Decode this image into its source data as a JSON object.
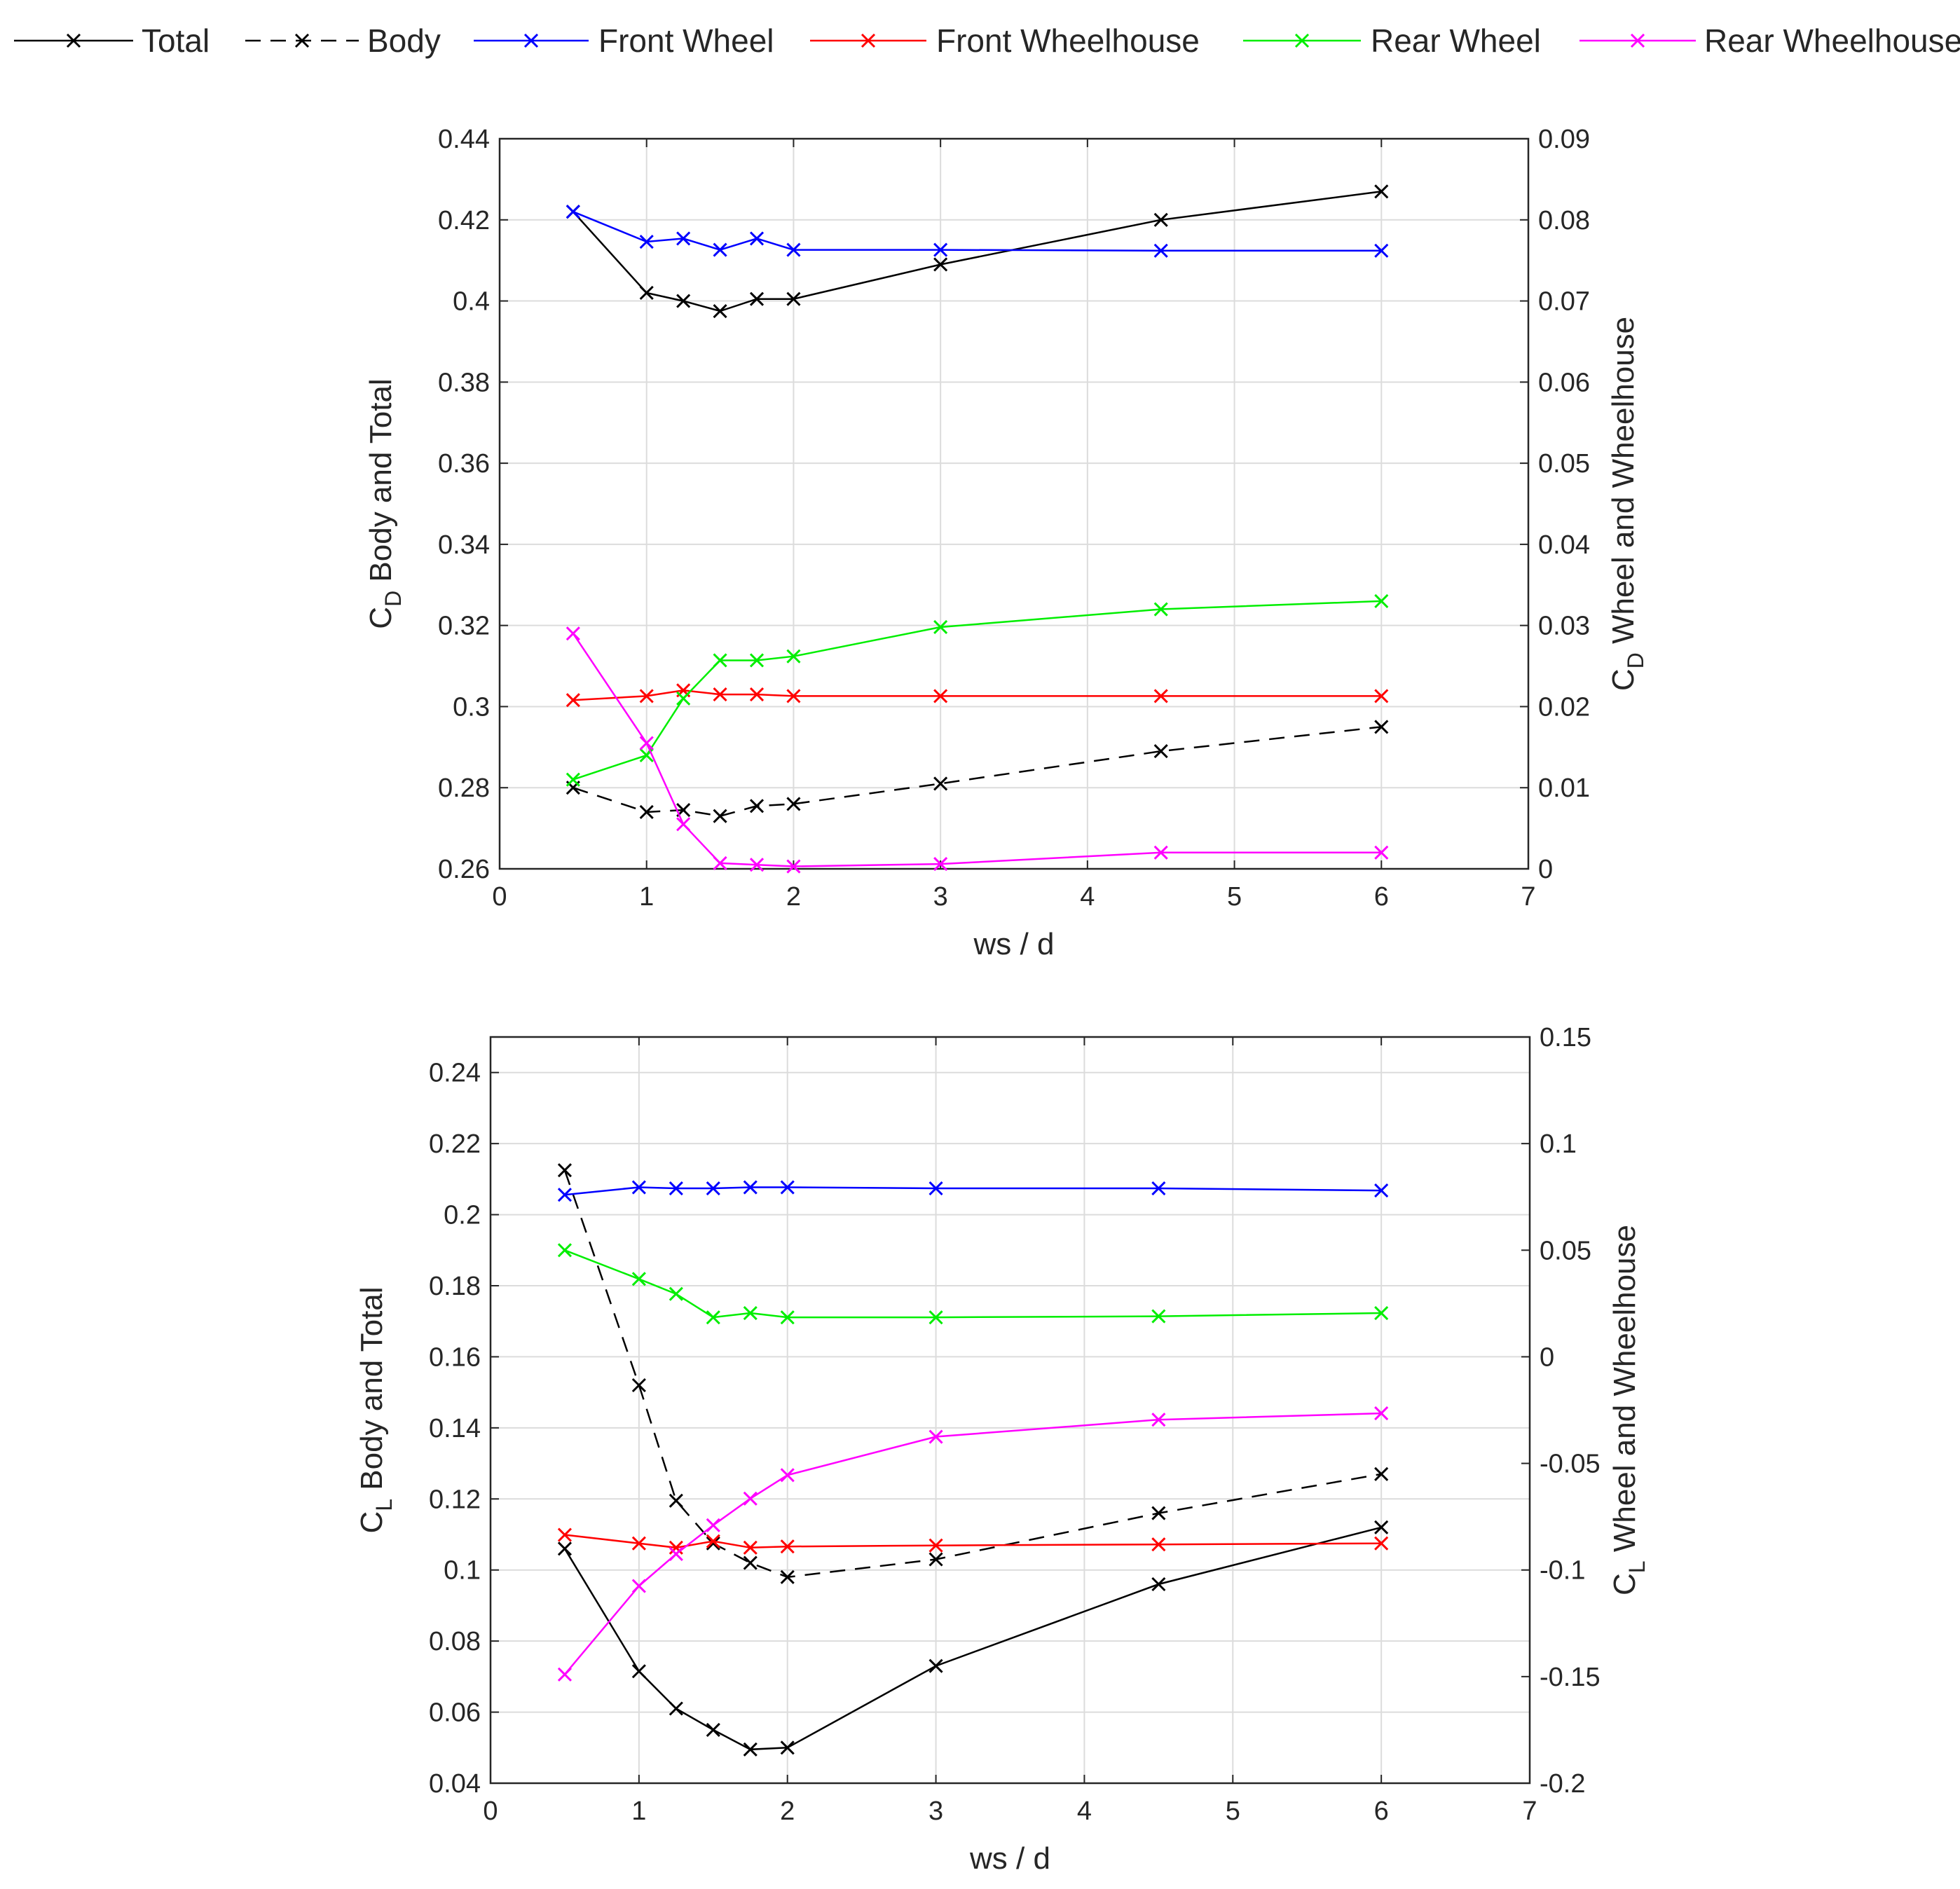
{
  "legend": [
    {
      "key": "total",
      "label": "Total",
      "color": "#000000",
      "dashed": false
    },
    {
      "key": "body",
      "label": "Body",
      "color": "#000000",
      "dashed": true
    },
    {
      "key": "front_wheel",
      "label": "Front Wheel",
      "color": "#0000ff",
      "dashed": false
    },
    {
      "key": "front_wheelhouse",
      "label": "Front Wheelhouse",
      "color": "#ff0000",
      "dashed": false
    },
    {
      "key": "rear_wheel",
      "label": "Rear Wheel",
      "color": "#00ee00",
      "dashed": false
    },
    {
      "key": "rear_wheelhouse",
      "label": "Rear Wheelhouse",
      "color": "#ff00ff",
      "dashed": false
    }
  ],
  "chart_data": [
    {
      "type": "line",
      "id": "drag",
      "xlabel": "ws / d",
      "ylabel_left": {
        "sym": "C",
        "sub": "D",
        "rest": " Body and Total"
      },
      "ylabel_right": {
        "sym": "C",
        "sub": "D",
        "rest": " Wheel and Wheelhouse"
      },
      "xlim": [
        0,
        7
      ],
      "xticks": [
        "0",
        "1",
        "2",
        "3",
        "4",
        "5",
        "6",
        "7"
      ],
      "ylim_left": [
        0.26,
        0.44
      ],
      "yticks_left": [
        "0.26",
        "0.28",
        "0.3",
        "0.32",
        "0.34",
        "0.36",
        "0.38",
        "0.4",
        "0.42",
        "0.44"
      ],
      "ylim_right": [
        0,
        0.09
      ],
      "yticks_right": [
        "0",
        "0.01",
        "0.02",
        "0.03",
        "0.04",
        "0.05",
        "0.06",
        "0.07",
        "0.08",
        "0.09"
      ],
      "grid": true,
      "x": [
        0.5,
        1,
        1.25,
        1.5,
        1.75,
        2,
        3,
        4.5,
        6
      ],
      "series": [
        {
          "name": "Total",
          "key": "total",
          "axis": "left",
          "values": [
            0.422,
            0.402,
            0.4,
            0.3975,
            0.4005,
            0.4005,
            0.409,
            0.42,
            0.427
          ]
        },
        {
          "name": "Body",
          "key": "body",
          "axis": "left",
          "values": [
            0.28,
            0.274,
            0.2745,
            0.273,
            0.2755,
            0.276,
            0.281,
            0.289,
            0.295
          ]
        },
        {
          "name": "Front Wheel",
          "key": "front_wheel",
          "axis": "right",
          "values": [
            0.081,
            0.0773,
            0.0777,
            0.0763,
            0.0777,
            0.0763,
            0.0763,
            0.0762,
            0.0762
          ]
        },
        {
          "name": "Front Wheelhouse",
          "key": "front_wheelhouse",
          "axis": "right",
          "values": [
            0.0208,
            0.0213,
            0.022,
            0.0215,
            0.0215,
            0.0213,
            0.0213,
            0.0213,
            0.0213
          ]
        },
        {
          "name": "Rear Wheel",
          "key": "rear_wheel",
          "axis": "right",
          "values": [
            0.011,
            0.014,
            0.021,
            0.0257,
            0.0257,
            0.0262,
            0.0298,
            0.032,
            0.033
          ]
        },
        {
          "name": "Rear Wheelhouse",
          "key": "rear_wheelhouse",
          "axis": "right",
          "values": [
            0.029,
            0.0155,
            0.0055,
            0.0007,
            0.0005,
            0.0003,
            0.0006,
            0.002,
            0.002
          ]
        }
      ]
    },
    {
      "type": "line",
      "id": "lift",
      "xlabel": "ws / d",
      "ylabel_left": {
        "sym": "C",
        "sub": "L",
        "rest": " Body and Total"
      },
      "ylabel_right": {
        "sym": "C",
        "sub": "L",
        "rest": " Wheel and Wheelhouse"
      },
      "xlim": [
        0,
        7
      ],
      "xticks": [
        "0",
        "1",
        "2",
        "3",
        "4",
        "5",
        "6",
        "7"
      ],
      "ylim_left": [
        0.04,
        0.25
      ],
      "yticks_left": [
        "0.04",
        "0.06",
        "0.08",
        "0.1",
        "0.12",
        "0.14",
        "0.16",
        "0.18",
        "0.2",
        "0.22",
        "0.24"
      ],
      "ylim_right": [
        -0.2,
        0.15
      ],
      "yticks_right": [
        "-0.2",
        "-0.15",
        "-0.1",
        "-0.05",
        "0",
        "0.05",
        "0.1",
        "0.15"
      ],
      "grid": true,
      "x": [
        0.5,
        1,
        1.25,
        1.5,
        1.75,
        2,
        3,
        4.5,
        6
      ],
      "series": [
        {
          "name": "Total",
          "key": "total",
          "axis": "left",
          "values": [
            0.106,
            0.0715,
            0.061,
            0.055,
            0.0495,
            0.05,
            0.073,
            0.096,
            0.112
          ]
        },
        {
          "name": "Body",
          "key": "body",
          "axis": "left",
          "values": [
            0.2125,
            0.152,
            0.1195,
            0.1075,
            0.102,
            0.098,
            0.103,
            0.116,
            0.127
          ]
        },
        {
          "name": "Front Wheel",
          "key": "front_wheel",
          "axis": "right",
          "values": [
            0.076,
            0.0795,
            0.079,
            0.079,
            0.0795,
            0.0795,
            0.079,
            0.079,
            0.078
          ]
        },
        {
          "name": "Front Wheelhouse",
          "key": "front_wheelhouse",
          "axis": "right",
          "values": [
            -0.0835,
            -0.0875,
            -0.0895,
            -0.0865,
            -0.0895,
            -0.089,
            -0.0885,
            -0.088,
            -0.0875
          ]
        },
        {
          "name": "Rear Wheel",
          "key": "rear_wheel",
          "axis": "right",
          "values": [
            0.05,
            0.0365,
            0.0295,
            0.0185,
            0.0205,
            0.0185,
            0.0185,
            0.019,
            0.0205
          ]
        },
        {
          "name": "Rear Wheelhouse",
          "key": "rear_wheelhouse",
          "axis": "right",
          "values": [
            -0.149,
            -0.1075,
            -0.0925,
            -0.079,
            -0.0665,
            -0.0555,
            -0.0375,
            -0.0295,
            -0.0265
          ]
        }
      ]
    }
  ]
}
